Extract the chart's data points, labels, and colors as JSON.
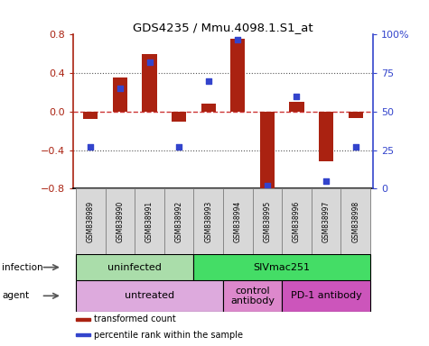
{
  "title": "GDS4235 / Mmu.4098.1.S1_at",
  "samples": [
    "GSM838989",
    "GSM838990",
    "GSM838991",
    "GSM838992",
    "GSM838993",
    "GSM838994",
    "GSM838995",
    "GSM838996",
    "GSM838997",
    "GSM838998"
  ],
  "transformed_count": [
    -0.08,
    0.35,
    0.6,
    -0.1,
    0.08,
    0.76,
    -0.85,
    0.1,
    -0.52,
    -0.07
  ],
  "percentile_rank": [
    27,
    65,
    82,
    27,
    70,
    97,
    2,
    60,
    5,
    27
  ],
  "ylim_left": [
    -0.8,
    0.8
  ],
  "ylim_right": [
    0,
    100
  ],
  "yticks_left": [
    -0.8,
    -0.4,
    0.0,
    0.4,
    0.8
  ],
  "yticks_right": [
    0,
    25,
    50,
    75,
    100
  ],
  "ytick_labels_right": [
    "0",
    "25",
    "50",
    "75",
    "100%"
  ],
  "bar_color": "#aa2211",
  "dot_color": "#3344cc",
  "hline_color": "#cc3333",
  "dotted_color": "#555555",
  "infection_groups": [
    {
      "label": "uninfected",
      "start": 0,
      "end": 3,
      "color": "#aaddaa"
    },
    {
      "label": "SIVmac251",
      "start": 4,
      "end": 9,
      "color": "#44dd66"
    }
  ],
  "agent_groups": [
    {
      "label": "untreated",
      "start": 0,
      "end": 4,
      "color": "#ddaadd"
    },
    {
      "label": "control\nantibody",
      "start": 5,
      "end": 6,
      "color": "#dd88cc"
    },
    {
      "label": "PD-1 antibody",
      "start": 7,
      "end": 9,
      "color": "#cc55bb"
    }
  ],
  "legend_items": [
    {
      "label": "transformed count",
      "color": "#aa2211"
    },
    {
      "label": "percentile rank within the sample",
      "color": "#3344cc"
    }
  ],
  "bar_width": 0.5,
  "n_samples": 10
}
